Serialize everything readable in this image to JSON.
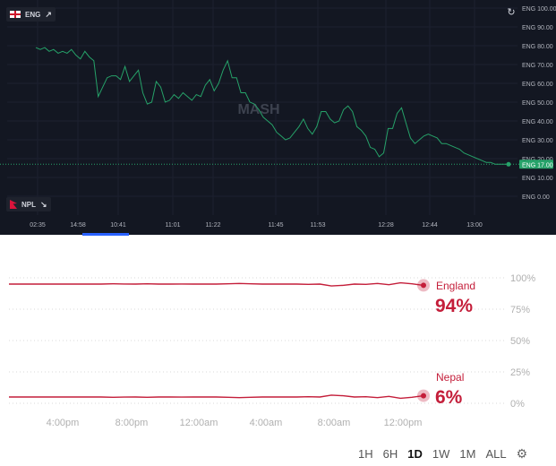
{
  "top_chart": {
    "team_a": {
      "label": "ENG",
      "icon": "trend-up-icon"
    },
    "team_b": {
      "label": "NPL",
      "icon": "trend-down-icon"
    },
    "watermark": "MASH",
    "refresh_icon": "refresh-icon",
    "price_tag": "ENG 17.00",
    "line_color": "#26a269",
    "chart_data": {
      "type": "line",
      "series": [
        {
          "name": "ENG",
          "x_index": [
            0,
            5,
            10,
            15,
            20,
            25,
            30,
            35,
            40,
            45,
            50,
            55,
            60,
            65,
            70,
            75,
            80,
            85,
            90,
            95,
            100,
            105,
            110,
            115,
            120,
            125,
            130,
            135,
            140,
            145,
            150,
            155,
            160,
            165,
            170,
            175,
            180,
            185,
            190,
            195,
            200,
            205,
            210,
            215,
            220,
            225,
            230,
            235,
            240,
            245,
            250,
            255,
            260,
            265,
            270,
            275,
            280,
            285,
            290,
            295,
            300,
            305,
            310,
            315,
            320,
            325,
            330,
            335,
            340,
            345,
            350,
            355,
            360,
            365,
            370,
            375,
            380,
            385,
            390,
            395,
            400,
            405,
            410,
            415,
            420,
            425,
            430,
            435,
            440,
            445,
            450,
            455,
            460,
            465,
            470,
            475,
            480,
            485,
            490,
            495,
            500,
            505,
            510,
            515,
            520,
            525,
            530
          ],
          "values": [
            79,
            78,
            79,
            77,
            78,
            76,
            77,
            76,
            78,
            75,
            73,
            77,
            74,
            72,
            53,
            58,
            63,
            64,
            64,
            62,
            69,
            61,
            64,
            67,
            55,
            49,
            50,
            61,
            58,
            50,
            51,
            54,
            52,
            55,
            53,
            51,
            54,
            53,
            59,
            62,
            56,
            60,
            67,
            72,
            63,
            63,
            55,
            55,
            50,
            49,
            46,
            42,
            40,
            38,
            34,
            32,
            30,
            31,
            34,
            37,
            41,
            36,
            33,
            37,
            45,
            45,
            41,
            39,
            40,
            46,
            48,
            45,
            37,
            35,
            32,
            26,
            25,
            21,
            23,
            36,
            36,
            44,
            47,
            39,
            31,
            28,
            30,
            32,
            33,
            32,
            31,
            28,
            28,
            27,
            26,
            25,
            23,
            22,
            21,
            20,
            19,
            18,
            18,
            17,
            17,
            17,
            17
          ]
        }
      ],
      "y_ticks": [
        "ENG 100.00",
        "ENG 90.00",
        "ENG 80.00",
        "ENG 70.00",
        "ENG 60.00",
        "ENG 50.00",
        "ENG 40.00",
        "ENG 30.00",
        "ENG 20.00",
        "ENG 10.00",
        "ENG 0.00"
      ],
      "x_ticks": [
        "02:35",
        "14:58",
        "10:41",
        "11:01",
        "11:22",
        "11:45",
        "11:53",
        "12:28",
        "12:44",
        "13:00"
      ],
      "ylim": [
        0,
        100
      ],
      "current": 17
    }
  },
  "bottom_chart": {
    "chart_data": {
      "type": "line",
      "series": [
        {
          "name": "England",
          "value_label": "94%",
          "color": "#c41e3a",
          "values": [
            95,
            95,
            95,
            95,
            95,
            95,
            95,
            95,
            95,
            95.2,
            95.1,
            95,
            95.2,
            95,
            95,
            95.1,
            95,
            95,
            95,
            95.2,
            95.5,
            95.2,
            95,
            95,
            95,
            95,
            94.8,
            95,
            93.5,
            94,
            95,
            94.8,
            95.5,
            94.5,
            96,
            95.2,
            94
          ]
        },
        {
          "name": "Nepal",
          "value_label": "6%",
          "color": "#c41e3a",
          "values": [
            5,
            5,
            5,
            5,
            5,
            5,
            5,
            5,
            5,
            4.8,
            4.9,
            5,
            4.8,
            5,
            5,
            4.9,
            5,
            5,
            5,
            4.8,
            4.5,
            4.8,
            5,
            5,
            5,
            5,
            5.2,
            5,
            6.5,
            6,
            5,
            5.2,
            4.5,
            5.5,
            4,
            4.8,
            6
          ]
        }
      ],
      "y_ticks": [
        "100%",
        "75%",
        "50%",
        "25%",
        "0%"
      ],
      "x_ticks": [
        "4:00pm",
        "8:00pm",
        "12:00am",
        "4:00am",
        "8:00am",
        "12:00pm"
      ],
      "ylim": [
        0,
        100
      ]
    },
    "ranges": [
      "1H",
      "6H",
      "1D",
      "1W",
      "1M",
      "ALL"
    ],
    "active_range": "1D",
    "settings_icon": "gear-icon"
  }
}
